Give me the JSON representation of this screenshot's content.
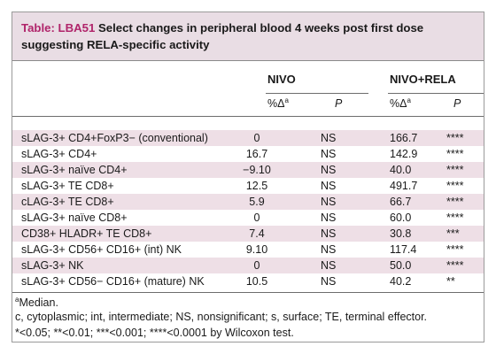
{
  "title": {
    "label": "Table: LBA51",
    "text": " Select changes in peripheral blood 4 weeks post first dose suggesting RELA-specific activity"
  },
  "headers": {
    "group1": "NIVO",
    "group2": "NIVO+RELA",
    "pct_delta": "%Δ",
    "pct_sup": "a",
    "p": "P"
  },
  "rows": [
    {
      "label": "sLAG-3+ CD4+FoxP3− (conventional)",
      "nivo": "0",
      "nivo_p": "NS",
      "combo": "166.7",
      "combo_p": "****"
    },
    {
      "label": "sLAG-3+ CD4+",
      "nivo": "16.7",
      "nivo_p": "NS",
      "combo": "142.9",
      "combo_p": "****"
    },
    {
      "label": "sLAG-3+ naïve CD4+",
      "nivo": "−9.10",
      "nivo_p": "NS",
      "combo": "40.0",
      "combo_p": "****"
    },
    {
      "label": "sLAG-3+ TE CD8+",
      "nivo": "12.5",
      "nivo_p": "NS",
      "combo": "491.7",
      "combo_p": "****"
    },
    {
      "label": "cLAG-3+ TE CD8+",
      "nivo": "5.9",
      "nivo_p": "NS",
      "combo": "66.7",
      "combo_p": "****"
    },
    {
      "label": "sLAG-3+ naïve CD8+",
      "nivo": "0",
      "nivo_p": "NS",
      "combo": "60.0",
      "combo_p": "****"
    },
    {
      "label": "CD38+ HLADR+ TE CD8+",
      "nivo": "7.4",
      "nivo_p": "NS",
      "combo": "30.8",
      "combo_p": "***"
    },
    {
      "label": "sLAG-3+ CD56+ CD16+ (int) NK",
      "nivo": "9.10",
      "nivo_p": "NS",
      "combo": "117.4",
      "combo_p": "****"
    },
    {
      "label": "sLAG-3+ NK",
      "nivo": "0",
      "nivo_p": "NS",
      "combo": "50.0",
      "combo_p": "****"
    },
    {
      "label": "sLAG-3+ CD56− CD16+ (mature) NK",
      "nivo": "10.5",
      "nivo_p": "NS",
      "combo": "40.2",
      "combo_p": "**"
    }
  ],
  "footnotes": {
    "median_sup": "a",
    "median": "Median.",
    "abbrev": "c, cytoplasmic; int, intermediate; NS, nonsignificant; s, surface; TE, terminal effector.",
    "pvalues": "*<0.05; **<0.01; ***<0.001; ****<0.0001 by Wilcoxon test."
  }
}
